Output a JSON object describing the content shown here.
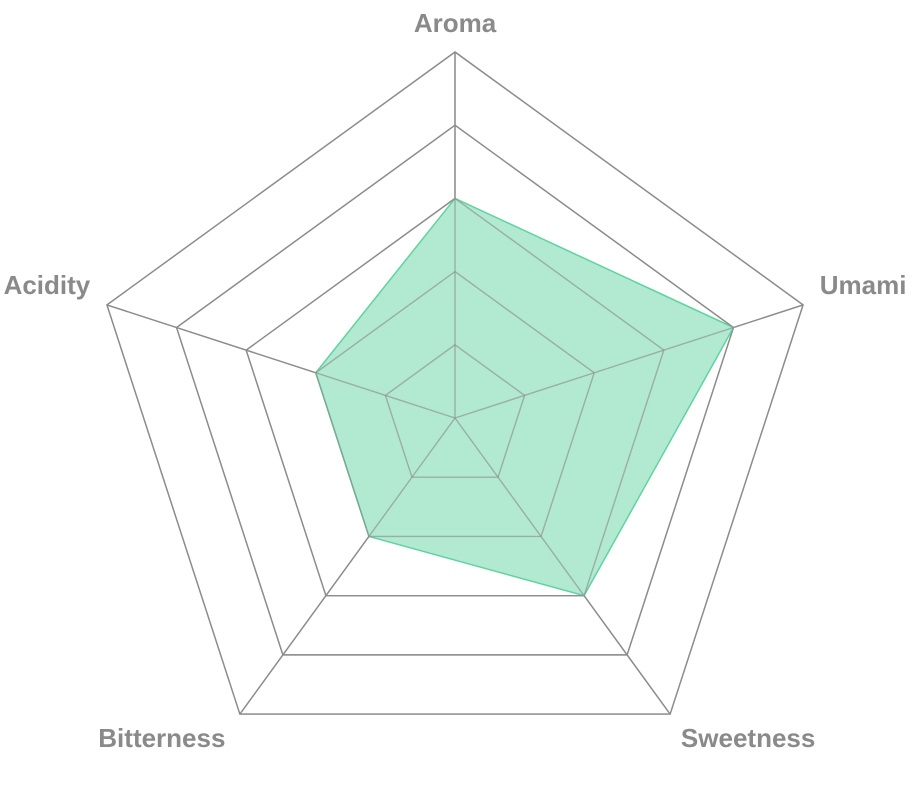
{
  "chart_data": {
    "type": "radar",
    "categories": [
      "Aroma",
      "Umami",
      "Sweetness",
      "Bitterness",
      "Acidity"
    ],
    "values": [
      3,
      4,
      3,
      2,
      2
    ],
    "rlim": [
      0,
      5
    ],
    "rticks": [
      1,
      2,
      3,
      4,
      5
    ],
    "color": "#5fd3a0",
    "fill": "#aee8cf",
    "grid": true
  }
}
